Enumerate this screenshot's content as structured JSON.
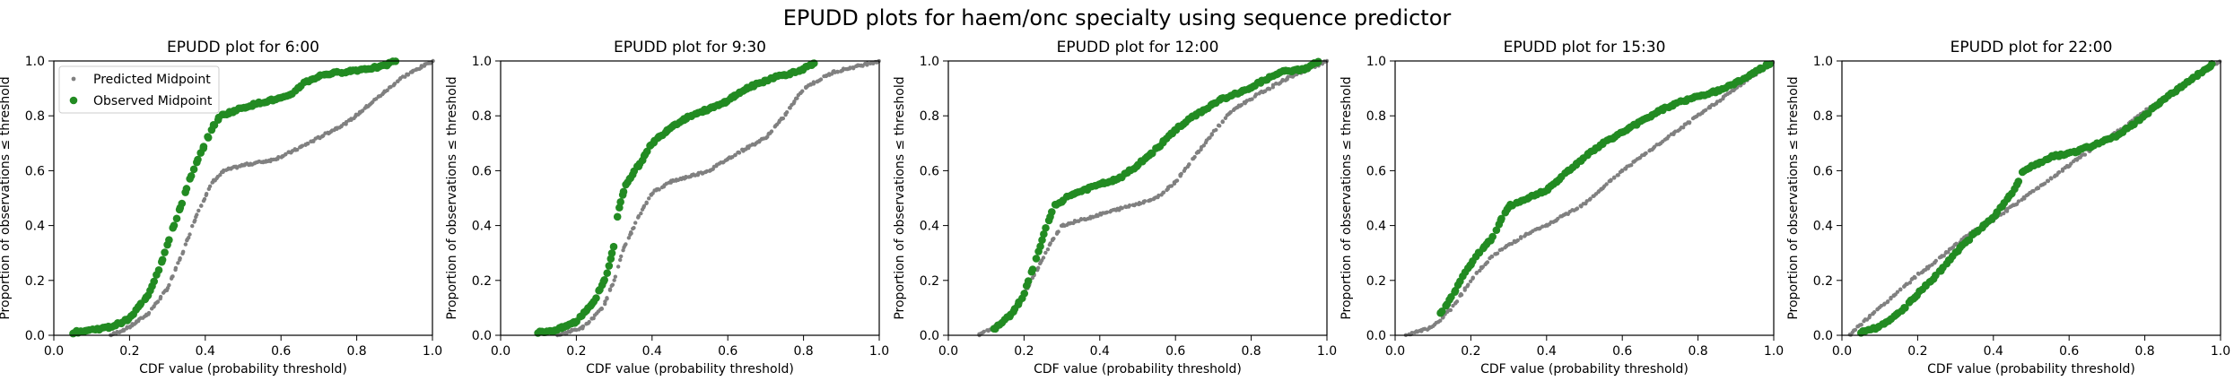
{
  "suptitle": "EPUDD plots for haem/onc specialty using sequence predictor",
  "legend": {
    "placement": "upper-left of first panel",
    "items": [
      "Predicted Midpoint",
      "Observed Midpoint"
    ]
  },
  "colors": {
    "predicted": "#808080",
    "observed": "#228b22",
    "axis": "#000000"
  },
  "chart_data": [
    {
      "type": "scatter",
      "title": "EPUDD plot for 6:00",
      "xlabel": "CDF value (probability threshold)",
      "ylabel": "Proportion of observations ≤ threshold",
      "xlim": [
        0,
        1
      ],
      "ylim": [
        0,
        1
      ],
      "xticks": [
        "0.0",
        "0.2",
        "0.4",
        "0.6",
        "0.8",
        "1.0"
      ],
      "yticks": [
        "0.0",
        "0.2",
        "0.4",
        "0.6",
        "0.8",
        "1.0"
      ],
      "series": [
        {
          "name": "Predicted Midpoint",
          "points": [
            [
              0.15,
              0.0
            ],
            [
              0.2,
              0.03
            ],
            [
              0.25,
              0.08
            ],
            [
              0.3,
              0.17
            ],
            [
              0.34,
              0.3
            ],
            [
              0.38,
              0.45
            ],
            [
              0.42,
              0.56
            ],
            [
              0.45,
              0.6
            ],
            [
              0.5,
              0.62
            ],
            [
              0.58,
              0.64
            ],
            [
              0.63,
              0.67
            ],
            [
              0.7,
              0.72
            ],
            [
              0.78,
              0.78
            ],
            [
              0.85,
              0.86
            ],
            [
              0.92,
              0.94
            ],
            [
              1.0,
              1.0
            ]
          ]
        },
        {
          "name": "Observed Midpoint",
          "points": [
            [
              0.05,
              0.01
            ],
            [
              0.1,
              0.02
            ],
            [
              0.15,
              0.03
            ],
            [
              0.2,
              0.06
            ],
            [
              0.25,
              0.15
            ],
            [
              0.28,
              0.25
            ],
            [
              0.3,
              0.33
            ],
            [
              0.33,
              0.45
            ],
            [
              0.36,
              0.57
            ],
            [
              0.39,
              0.67
            ],
            [
              0.42,
              0.76
            ],
            [
              0.44,
              0.8
            ],
            [
              0.5,
              0.83
            ],
            [
              0.55,
              0.85
            ],
            [
              0.62,
              0.87
            ],
            [
              0.66,
              0.92
            ],
            [
              0.71,
              0.95
            ],
            [
              0.87,
              0.98
            ],
            [
              0.9,
              1.0
            ]
          ]
        }
      ]
    },
    {
      "type": "scatter",
      "title": "EPUDD plot for 9:30",
      "xlabel": "CDF value (probability threshold)",
      "ylabel": "Proportion of observations ≤ threshold",
      "xlim": [
        0,
        1
      ],
      "ylim": [
        0,
        1
      ],
      "xticks": [
        "0.0",
        "0.2",
        "0.4",
        "0.6",
        "0.8",
        "1.0"
      ],
      "yticks": [
        "0.0",
        "0.2",
        "0.4",
        "0.6",
        "0.8",
        "1.0"
      ],
      "series": [
        {
          "name": "Predicted Midpoint",
          "points": [
            [
              0.15,
              0.0
            ],
            [
              0.22,
              0.03
            ],
            [
              0.27,
              0.1
            ],
            [
              0.3,
              0.2
            ],
            [
              0.32,
              0.3
            ],
            [
              0.36,
              0.42
            ],
            [
              0.4,
              0.52
            ],
            [
              0.45,
              0.56
            ],
            [
              0.55,
              0.6
            ],
            [
              0.62,
              0.66
            ],
            [
              0.7,
              0.72
            ],
            [
              0.75,
              0.8
            ],
            [
              0.8,
              0.9
            ],
            [
              0.88,
              0.96
            ],
            [
              1.0,
              1.0
            ]
          ]
        },
        {
          "name": "Observed Midpoint",
          "points": [
            [
              0.1,
              0.01
            ],
            [
              0.15,
              0.02
            ],
            [
              0.2,
              0.05
            ],
            [
              0.25,
              0.13
            ],
            [
              0.28,
              0.22
            ],
            [
              0.3,
              0.33
            ],
            [
              0.31,
              0.45
            ],
            [
              0.33,
              0.55
            ],
            [
              0.37,
              0.63
            ],
            [
              0.4,
              0.7
            ],
            [
              0.45,
              0.76
            ],
            [
              0.5,
              0.8
            ],
            [
              0.58,
              0.84
            ],
            [
              0.65,
              0.9
            ],
            [
              0.72,
              0.94
            ],
            [
              0.78,
              0.96
            ],
            [
              0.83,
              0.99
            ]
          ]
        }
      ]
    },
    {
      "type": "scatter",
      "title": "EPUDD plot for 12:00",
      "xlabel": "CDF value (probability threshold)",
      "ylabel": "Proportion of observations ≤ threshold",
      "xlim": [
        0,
        1
      ],
      "ylim": [
        0,
        1
      ],
      "xticks": [
        "0.0",
        "0.2",
        "0.4",
        "0.6",
        "0.8",
        "1.0"
      ],
      "yticks": [
        "0.0",
        "0.2",
        "0.4",
        "0.6",
        "0.8",
        "1.0"
      ],
      "series": [
        {
          "name": "Predicted Midpoint",
          "points": [
            [
              0.08,
              0.0
            ],
            [
              0.15,
              0.05
            ],
            [
              0.2,
              0.15
            ],
            [
              0.25,
              0.28
            ],
            [
              0.28,
              0.36
            ],
            [
              0.3,
              0.4
            ],
            [
              0.35,
              0.42
            ],
            [
              0.45,
              0.46
            ],
            [
              0.55,
              0.5
            ],
            [
              0.6,
              0.56
            ],
            [
              0.65,
              0.65
            ],
            [
              0.7,
              0.74
            ],
            [
              0.75,
              0.82
            ],
            [
              0.82,
              0.88
            ],
            [
              0.9,
              0.94
            ],
            [
              1.0,
              1.0
            ]
          ]
        },
        {
          "name": "Observed Midpoint",
          "points": [
            [
              0.12,
              0.02
            ],
            [
              0.17,
              0.08
            ],
            [
              0.2,
              0.15
            ],
            [
              0.23,
              0.27
            ],
            [
              0.26,
              0.4
            ],
            [
              0.28,
              0.47
            ],
            [
              0.32,
              0.51
            ],
            [
              0.4,
              0.55
            ],
            [
              0.45,
              0.57
            ],
            [
              0.5,
              0.62
            ],
            [
              0.55,
              0.68
            ],
            [
              0.6,
              0.75
            ],
            [
              0.65,
              0.8
            ],
            [
              0.72,
              0.86
            ],
            [
              0.78,
              0.89
            ],
            [
              0.82,
              0.92
            ],
            [
              0.88,
              0.96
            ],
            [
              0.94,
              0.97
            ],
            [
              0.98,
              1.0
            ]
          ]
        }
      ]
    },
    {
      "type": "scatter",
      "title": "EPUDD plot for 15:30",
      "xlabel": "CDF value (probability threshold)",
      "ylabel": "Proportion of observations ≤ threshold",
      "xlim": [
        0,
        1
      ],
      "ylim": [
        0,
        1
      ],
      "xticks": [
        "0.0",
        "0.2",
        "0.4",
        "0.6",
        "0.8",
        "1.0"
      ],
      "yticks": [
        "0.0",
        "0.2",
        "0.4",
        "0.6",
        "0.8",
        "1.0"
      ],
      "series": [
        {
          "name": "Predicted Midpoint",
          "points": [
            [
              0.03,
              0.0
            ],
            [
              0.1,
              0.03
            ],
            [
              0.15,
              0.1
            ],
            [
              0.2,
              0.2
            ],
            [
              0.25,
              0.28
            ],
            [
              0.3,
              0.33
            ],
            [
              0.35,
              0.37
            ],
            [
              0.4,
              0.4
            ],
            [
              0.5,
              0.48
            ],
            [
              0.6,
              0.6
            ],
            [
              0.7,
              0.7
            ],
            [
              0.8,
              0.8
            ],
            [
              0.9,
              0.9
            ],
            [
              0.95,
              0.95
            ],
            [
              1.0,
              1.0
            ]
          ]
        },
        {
          "name": "Observed Midpoint",
          "points": [
            [
              0.12,
              0.08
            ],
            [
              0.15,
              0.14
            ],
            [
              0.18,
              0.22
            ],
            [
              0.22,
              0.3
            ],
            [
              0.26,
              0.36
            ],
            [
              0.28,
              0.42
            ],
            [
              0.3,
              0.47
            ],
            [
              0.35,
              0.5
            ],
            [
              0.4,
              0.53
            ],
            [
              0.45,
              0.59
            ],
            [
              0.5,
              0.65
            ],
            [
              0.55,
              0.7
            ],
            [
              0.6,
              0.74
            ],
            [
              0.65,
              0.78
            ],
            [
              0.7,
              0.82
            ],
            [
              0.75,
              0.85
            ],
            [
              0.8,
              0.87
            ],
            [
              0.85,
              0.89
            ],
            [
              0.9,
              0.92
            ],
            [
              0.95,
              0.96
            ],
            [
              0.99,
              0.99
            ]
          ]
        }
      ]
    },
    {
      "type": "scatter",
      "title": "EPUDD plot for 22:00",
      "xlabel": "CDF value (probability threshold)",
      "ylabel": "Proportion of observations ≤ threshold",
      "xlim": [
        0,
        1
      ],
      "ylim": [
        0,
        1
      ],
      "xticks": [
        "0.0",
        "0.2",
        "0.4",
        "0.6",
        "0.8",
        "1.0"
      ],
      "yticks": [
        "0.0",
        "0.2",
        "0.4",
        "0.6",
        "0.8",
        "1.0"
      ],
      "series": [
        {
          "name": "Predicted Midpoint",
          "points": [
            [
              0.02,
              0.0
            ],
            [
              0.05,
              0.04
            ],
            [
              0.1,
              0.1
            ],
            [
              0.15,
              0.16
            ],
            [
              0.2,
              0.22
            ],
            [
              0.25,
              0.27
            ],
            [
              0.3,
              0.33
            ],
            [
              0.35,
              0.38
            ],
            [
              0.4,
              0.42
            ],
            [
              0.45,
              0.47
            ],
            [
              0.5,
              0.52
            ],
            [
              0.55,
              0.57
            ],
            [
              0.6,
              0.62
            ],
            [
              0.65,
              0.67
            ],
            [
              0.7,
              0.72
            ],
            [
              0.75,
              0.76
            ],
            [
              0.8,
              0.82
            ],
            [
              0.85,
              0.86
            ],
            [
              0.9,
              0.91
            ],
            [
              0.95,
              0.96
            ],
            [
              1.0,
              1.0
            ]
          ]
        },
        {
          "name": "Observed Midpoint",
          "points": [
            [
              0.05,
              0.01
            ],
            [
              0.1,
              0.03
            ],
            [
              0.15,
              0.08
            ],
            [
              0.2,
              0.15
            ],
            [
              0.25,
              0.22
            ],
            [
              0.3,
              0.3
            ],
            [
              0.35,
              0.37
            ],
            [
              0.4,
              0.43
            ],
            [
              0.45,
              0.52
            ],
            [
              0.48,
              0.6
            ],
            [
              0.55,
              0.65
            ],
            [
              0.62,
              0.67
            ],
            [
              0.68,
              0.7
            ],
            [
              0.73,
              0.73
            ],
            [
              0.8,
              0.8
            ],
            [
              0.85,
              0.86
            ],
            [
              0.9,
              0.91
            ],
            [
              0.95,
              0.96
            ],
            [
              0.98,
              0.99
            ]
          ]
        }
      ]
    }
  ]
}
